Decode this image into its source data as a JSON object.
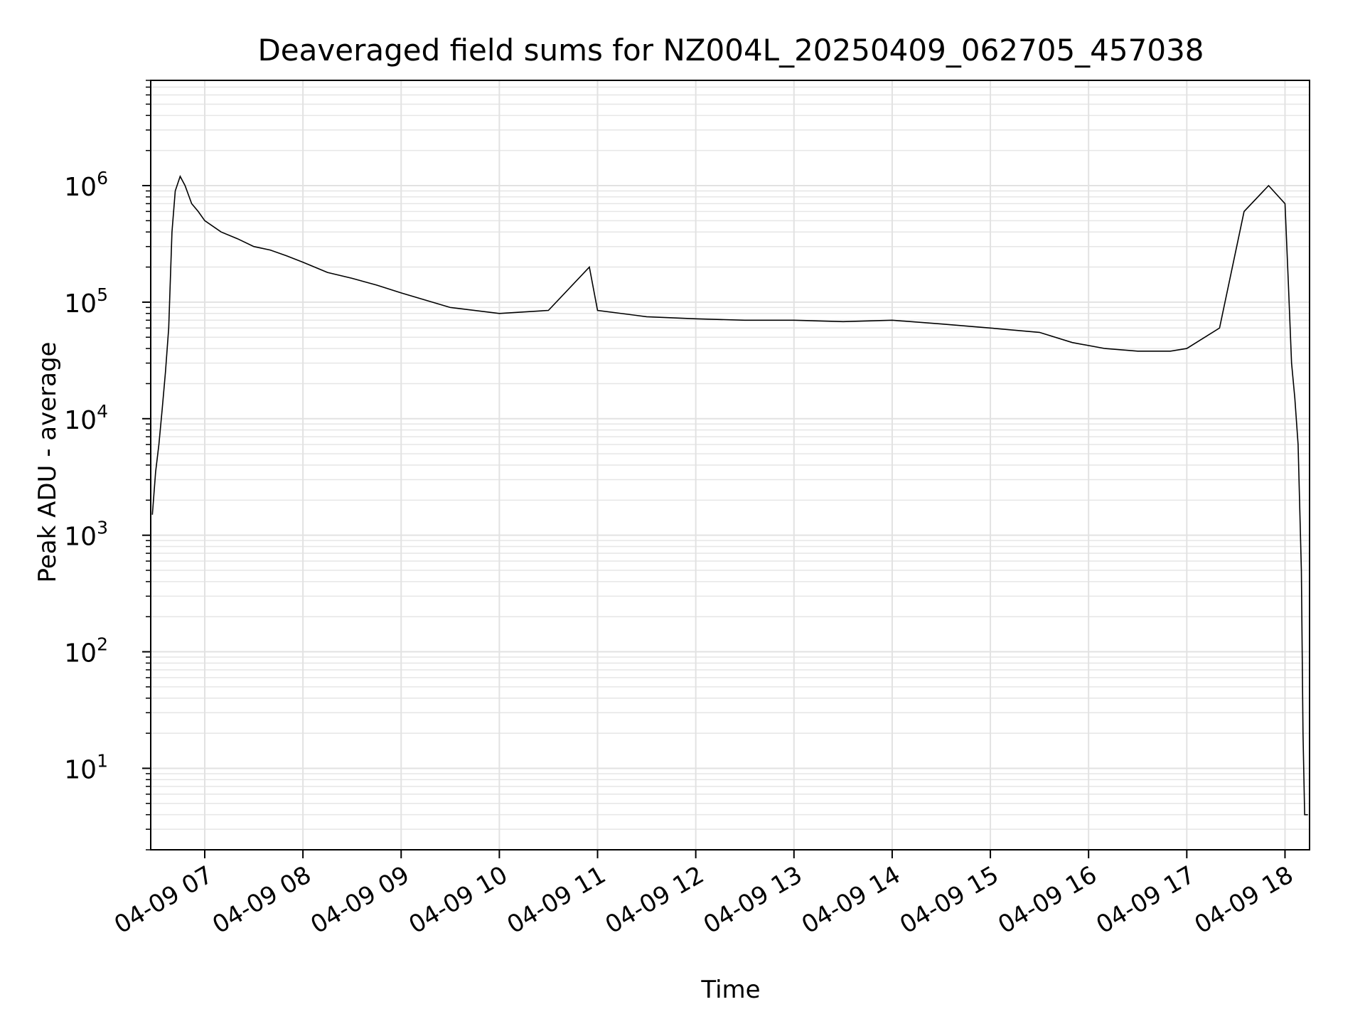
{
  "chart_data": {
    "type": "line",
    "title": "Deaveraged field sums for NZ004L_20250409_062705_457038",
    "xlabel": "Time",
    "ylabel": "Peak ADU - average",
    "xscale": "time",
    "yscale": "log",
    "xlim": [
      "2025-04-09 06:27",
      "2025-04-09 18:15"
    ],
    "ylim": [
      2,
      8000000
    ],
    "grid": "major and minor",
    "line_color": "#000000",
    "x_ticks": [
      "04-09 07",
      "04-09 08",
      "04-09 09",
      "04-09 10",
      "04-09 11",
      "04-09 12",
      "04-09 13",
      "04-09 14",
      "04-09 15",
      "04-09 16",
      "04-09 17",
      "04-09 18"
    ],
    "y_ticks": [
      {
        "base": "10",
        "exp": "1",
        "value": 10
      },
      {
        "base": "10",
        "exp": "2",
        "value": 100
      },
      {
        "base": "10",
        "exp": "3",
        "value": 1000
      },
      {
        "base": "10",
        "exp": "4",
        "value": 10000
      },
      {
        "base": "10",
        "exp": "5",
        "value": 100000
      },
      {
        "base": "10",
        "exp": "6",
        "value": 1000000
      }
    ],
    "series": [
      {
        "x": [
          "2025-04-09 06:28",
          "2025-04-09 06:30",
          "2025-04-09 06:32",
          "2025-04-09 06:34",
          "2025-04-09 06:36",
          "2025-04-09 06:38",
          "2025-04-09 06:40",
          "2025-04-09 06:42",
          "2025-04-09 06:45",
          "2025-04-09 06:48",
          "2025-04-09 06:52",
          "2025-04-09 06:56",
          "2025-04-09 07:00",
          "2025-04-09 07:10",
          "2025-04-09 07:20",
          "2025-04-09 07:30",
          "2025-04-09 07:40",
          "2025-04-09 07:50",
          "2025-04-09 08:00",
          "2025-04-09 08:15",
          "2025-04-09 08:30",
          "2025-04-09 08:45",
          "2025-04-09 09:00",
          "2025-04-09 09:30",
          "2025-04-09 10:00",
          "2025-04-09 10:30",
          "2025-04-09 10:55",
          "2025-04-09 11:00",
          "2025-04-09 11:30",
          "2025-04-09 12:00",
          "2025-04-09 12:30",
          "2025-04-09 13:00",
          "2025-04-09 13:30",
          "2025-04-09 14:00",
          "2025-04-09 14:30",
          "2025-04-09 15:00",
          "2025-04-09 15:30",
          "2025-04-09 15:50",
          "2025-04-09 16:10",
          "2025-04-09 16:30",
          "2025-04-09 16:50",
          "2025-04-09 17:00",
          "2025-04-09 17:20",
          "2025-04-09 17:35",
          "2025-04-09 17:50",
          "2025-04-09 18:00",
          "2025-04-09 18:02",
          "2025-04-09 18:04",
          "2025-04-09 18:06",
          "2025-04-09 18:08",
          "2025-04-09 18:10",
          "2025-04-09 18:11",
          "2025-04-09 18:12",
          "2025-04-09 18:13",
          "2025-04-09 18:14"
        ],
        "y": [
          1500,
          3500,
          6000,
          12000,
          25000,
          60000,
          400000,
          900000,
          1200000,
          1000000,
          700000,
          600000,
          500000,
          400000,
          350000,
          300000,
          280000,
          250000,
          220000,
          180000,
          160000,
          140000,
          120000,
          90000,
          80000,
          85000,
          200000,
          85000,
          75000,
          72000,
          70000,
          70000,
          68000,
          70000,
          65000,
          60000,
          55000,
          45000,
          40000,
          38000,
          38000,
          40000,
          60000,
          600000,
          1000000,
          700000,
          150000,
          30000,
          15000,
          6000,
          500,
          20,
          4,
          4,
          4
        ]
      }
    ]
  }
}
